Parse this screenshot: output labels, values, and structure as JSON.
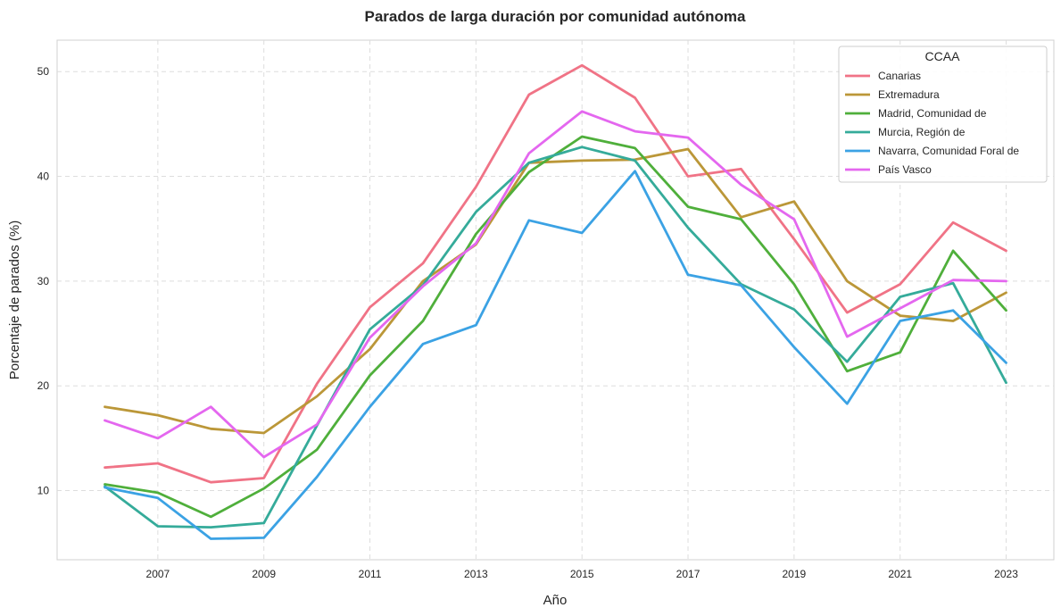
{
  "chart_data": {
    "type": "line",
    "title": "Parados de larga duración por comunidad autónoma",
    "xlabel": "Año",
    "ylabel": "Porcentaje de parados (%)",
    "xlim": [
      2005.1,
      2023.9
    ],
    "ylim": [
      3.4,
      53.0
    ],
    "x_ticks": [
      2007,
      2009,
      2011,
      2013,
      2015,
      2017,
      2019,
      2021,
      2023
    ],
    "y_ticks": [
      10,
      20,
      30,
      40,
      50
    ],
    "grid": true,
    "legend": {
      "title": "CCAA",
      "placement": "top-right"
    },
    "x": [
      2006,
      2007,
      2008,
      2009,
      2010,
      2011,
      2012,
      2013,
      2014,
      2015,
      2016,
      2017,
      2018,
      2019,
      2020,
      2021,
      2022,
      2023
    ],
    "series": [
      {
        "name": "Canarias",
        "color": "#f07386",
        "values": [
          12.2,
          12.6,
          10.8,
          11.2,
          20.2,
          27.5,
          31.7,
          39.0,
          47.8,
          50.6,
          47.5,
          40.0,
          40.7,
          34.0,
          27.0,
          29.7,
          35.6,
          32.9
        ]
      },
      {
        "name": "Extremadura",
        "color": "#bb9738",
        "values": [
          18.0,
          17.2,
          15.9,
          15.5,
          19.0,
          23.5,
          30.0,
          33.5,
          41.3,
          41.5,
          41.6,
          42.6,
          36.1,
          37.6,
          30.0,
          26.7,
          26.2,
          28.9
        ]
      },
      {
        "name": "Madrid, Comunidad de",
        "color": "#4faf3b",
        "values": [
          10.6,
          9.8,
          7.5,
          10.2,
          13.9,
          21.0,
          26.2,
          34.5,
          40.4,
          43.8,
          42.7,
          37.1,
          35.9,
          29.7,
          21.4,
          23.2,
          32.9,
          27.2
        ]
      },
      {
        "name": "Murcia, Región de",
        "color": "#35ab9a",
        "values": [
          10.4,
          6.6,
          6.5,
          6.9,
          16.2,
          25.4,
          29.6,
          36.6,
          41.3,
          42.8,
          41.5,
          35.1,
          29.7,
          27.3,
          22.3,
          28.5,
          29.8,
          20.3
        ]
      },
      {
        "name": "Navarra, Comunidad Foral de",
        "color": "#3ba2e4",
        "values": [
          10.3,
          9.3,
          5.4,
          5.5,
          11.3,
          18.0,
          24.0,
          25.8,
          35.8,
          34.6,
          40.5,
          30.6,
          29.6,
          23.7,
          18.3,
          26.2,
          27.2,
          22.2
        ]
      },
      {
        "name": "País Vasco",
        "color": "#e467ef",
        "values": [
          16.7,
          15.0,
          18.0,
          13.2,
          16.3,
          24.6,
          29.5,
          33.6,
          42.2,
          46.2,
          44.3,
          43.7,
          39.2,
          35.9,
          24.7,
          27.4,
          30.1,
          30.0
        ]
      }
    ]
  }
}
